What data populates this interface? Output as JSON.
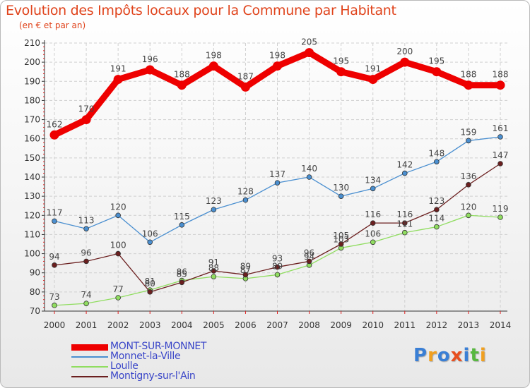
{
  "title": "Evolution des Impôts locaux pour la Commune par Habitant",
  "subtitle": "(en € et par an)",
  "logo": {
    "letters": [
      {
        "ch": "P",
        "color": "#3a7fd5"
      },
      {
        "ch": "r",
        "color": "#f0a020"
      },
      {
        "ch": "o",
        "color": "#3a7fd5"
      },
      {
        "ch": "x",
        "color": "#e85020"
      },
      {
        "ch": "i",
        "color": "#3a7fd5"
      },
      {
        "ch": "t",
        "color": "#58b840"
      },
      {
        "ch": "i",
        "color": "#f0a020"
      }
    ]
  },
  "chart_data": {
    "type": "line",
    "title": "Evolution des Impôts locaux pour la Commune par Habitant",
    "subtitle": "(en € et par an)",
    "xlabel": "",
    "ylabel": "",
    "ylim": [
      70,
      210
    ],
    "yticks": [
      70,
      80,
      90,
      100,
      110,
      120,
      130,
      140,
      150,
      160,
      170,
      180,
      190,
      200,
      210
    ],
    "categories": [
      "2000",
      "2001",
      "2002",
      "2003",
      "2004",
      "2005",
      "2006",
      "2007",
      "2008",
      "2009",
      "2010",
      "2011",
      "2012",
      "2013",
      "2014"
    ],
    "grid": true,
    "legend_position": "bottom-left",
    "series": [
      {
        "name": "MONT-SUR-MONNET",
        "color": "#ee0000",
        "emphasis": true,
        "values": [
          162,
          170,
          191,
          196,
          188,
          198,
          187,
          198,
          205,
          195,
          191,
          200,
          195,
          188,
          188
        ]
      },
      {
        "name": "Monnet-la-Ville",
        "color": "#4a8fd0",
        "emphasis": false,
        "values": [
          117,
          113,
          120,
          106,
          115,
          123,
          128,
          137,
          140,
          130,
          134,
          142,
          148,
          159,
          161
        ]
      },
      {
        "name": "Loulle",
        "color": "#90dd60",
        "emphasis": false,
        "values": [
          73,
          74,
          77,
          81,
          86,
          88,
          87,
          89,
          94,
          103,
          106,
          111,
          114,
          120,
          119
        ]
      },
      {
        "name": "Montigny-sur-l'Ain",
        "color": "#6b1f1f",
        "emphasis": false,
        "values": [
          94,
          96,
          100,
          80,
          85,
          91,
          89,
          93,
          96,
          105,
          116,
          116,
          123,
          136,
          147
        ]
      }
    ]
  }
}
